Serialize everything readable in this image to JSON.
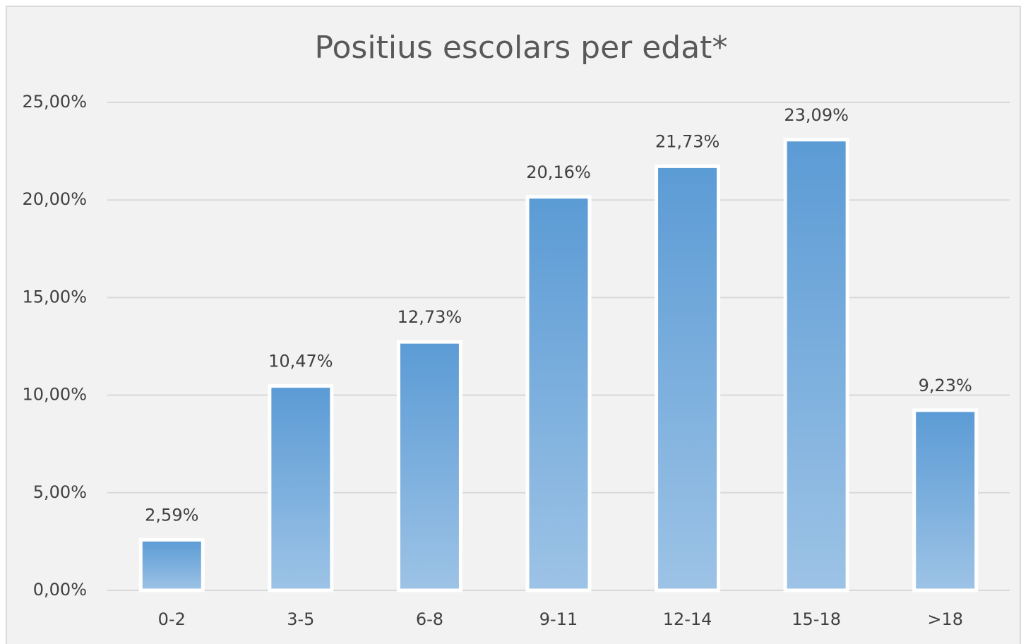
{
  "chart_data": {
    "type": "bar",
    "title": "Positius escolars per edat*",
    "categories": [
      "0-2",
      "3-5",
      "6-8",
      "9-11",
      "12-14",
      "15-18",
      ">18"
    ],
    "values": [
      2.59,
      10.47,
      12.73,
      20.16,
      21.73,
      23.09,
      9.23
    ],
    "value_labels": [
      "2,59%",
      "10,47%",
      "12,73%",
      "20,16%",
      "21,73%",
      "23,09%",
      "9,23%"
    ],
    "color": "#5b9bd5",
    "gradient_end_color": "#9dc3e6",
    "ylim": [
      0,
      25
    ],
    "yticks": [
      {
        "value": 0,
        "label": "0,00%"
      },
      {
        "value": 5,
        "label": "5,00%"
      },
      {
        "value": 10,
        "label": "10,00%"
      },
      {
        "value": 15,
        "label": "15,00%"
      },
      {
        "value": 20,
        "label": "20,00%"
      },
      {
        "value": 25,
        "label": "25,00%"
      }
    ],
    "grid": true
  }
}
